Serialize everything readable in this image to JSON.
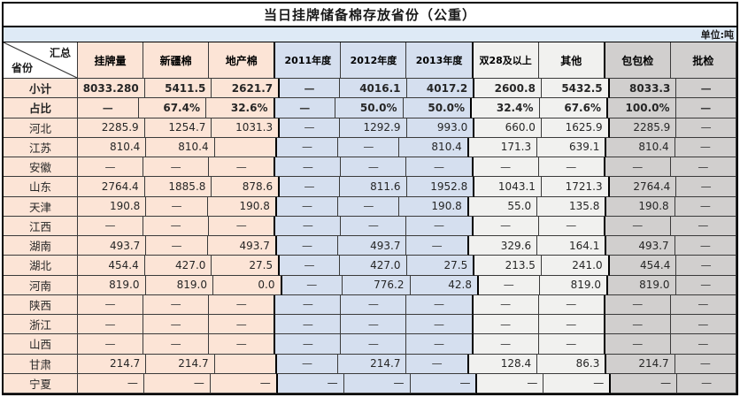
{
  "title": "当日挂牌储备棉存放省份（公重）",
  "unit_label": "单位:吨",
  "corner": {
    "top_right": "汇总",
    "bottom_left": "省份"
  },
  "columns": [
    "挂牌量",
    "新疆棉",
    "地产棉",
    "2011年度",
    "2012年度",
    "2013年度",
    "双28及以上",
    "其他",
    "包包检",
    "批检"
  ],
  "colors": {
    "peach": "#FCE4D6",
    "blue": "#D5DFEF",
    "light_gray": "#F1F1EF",
    "gray": "#D1CFCE",
    "unit_bar": "#DEEAF6"
  },
  "rows": [
    {
      "label": "小计",
      "bold": true,
      "cells": [
        "8033.280",
        "5411.5",
        "2621.7",
        "—",
        "4016.1",
        "4017.2",
        "2600.8",
        "5432.5",
        "8033.3",
        "—"
      ]
    },
    {
      "label": "占比",
      "bold": true,
      "cells": [
        "—",
        "67.4%",
        "32.6%",
        "—",
        "50.0%",
        "50.0%",
        "32.4%",
        "67.6%",
        "100.0%",
        "—"
      ]
    },
    {
      "label": "河北",
      "bold": false,
      "cells": [
        "2285.9",
        "1254.7",
        "1031.3",
        "—",
        "1292.9",
        "993.0",
        "660.0",
        "1625.9",
        "2285.9",
        "—"
      ]
    },
    {
      "label": "江苏",
      "bold": false,
      "cells": [
        "810.4",
        "810.4",
        "",
        "—",
        "—",
        "810.4",
        "171.3",
        "639.1",
        "810.4",
        "—"
      ]
    },
    {
      "label": "安徽",
      "bold": false,
      "cells": [
        "—",
        "—",
        "—",
        "—",
        "—",
        "—",
        "—",
        "—",
        "—",
        "—"
      ]
    },
    {
      "label": "山东",
      "bold": false,
      "cells": [
        "2764.4",
        "1885.8",
        "878.6",
        "—",
        "811.6",
        "1952.8",
        "1043.1",
        "1721.3",
        "2764.4",
        "—"
      ]
    },
    {
      "label": "天津",
      "bold": false,
      "cells": [
        "190.8",
        "—",
        "190.8",
        "—",
        "—",
        "190.8",
        "55.0",
        "135.8",
        "190.8",
        "—"
      ]
    },
    {
      "label": "江西",
      "bold": false,
      "cells": [
        "—",
        "—",
        "—",
        "—",
        "—",
        "—",
        "—",
        "—",
        "—",
        "—"
      ]
    },
    {
      "label": "湖南",
      "bold": false,
      "cells": [
        "493.7",
        "—",
        "493.7",
        "—",
        "493.7",
        "—",
        "329.6",
        "164.1",
        "493.7",
        "—"
      ]
    },
    {
      "label": "湖北",
      "bold": false,
      "cells": [
        "454.4",
        "427.0",
        "27.5",
        "—",
        "427.0",
        "27.5",
        "213.5",
        "241.0",
        "454.4",
        "—"
      ]
    },
    {
      "label": "河南",
      "bold": false,
      "cells": [
        "819.0",
        "819.0",
        "0.0",
        "—",
        "776.2",
        "42.8",
        "—",
        "819.0",
        "819.0",
        "—"
      ]
    },
    {
      "label": "陕西",
      "bold": false,
      "cells": [
        "—",
        "—",
        "—",
        "—",
        "—",
        "—",
        "—",
        "—",
        "—",
        "—"
      ]
    },
    {
      "label": "浙江",
      "bold": false,
      "cells": [
        "—",
        "—",
        "—",
        "—",
        "—",
        "—",
        "—",
        "—",
        "—",
        "—"
      ]
    },
    {
      "label": "山西",
      "bold": false,
      "cells": [
        "—",
        "—",
        "—",
        "—",
        "—",
        "—",
        "—",
        "—",
        "—",
        "—"
      ]
    },
    {
      "label": "甘肃",
      "bold": false,
      "cells": [
        "214.7",
        "214.7",
        "",
        "—",
        "214.7",
        "—",
        "128.4",
        "86.3",
        "214.7",
        "—"
      ]
    },
    {
      "label": "宁夏",
      "bold": false,
      "dash_right": true,
      "cells": [
        "—",
        "—",
        "—",
        "—",
        "—",
        "—",
        "—",
        "—",
        "—",
        "—"
      ]
    }
  ]
}
